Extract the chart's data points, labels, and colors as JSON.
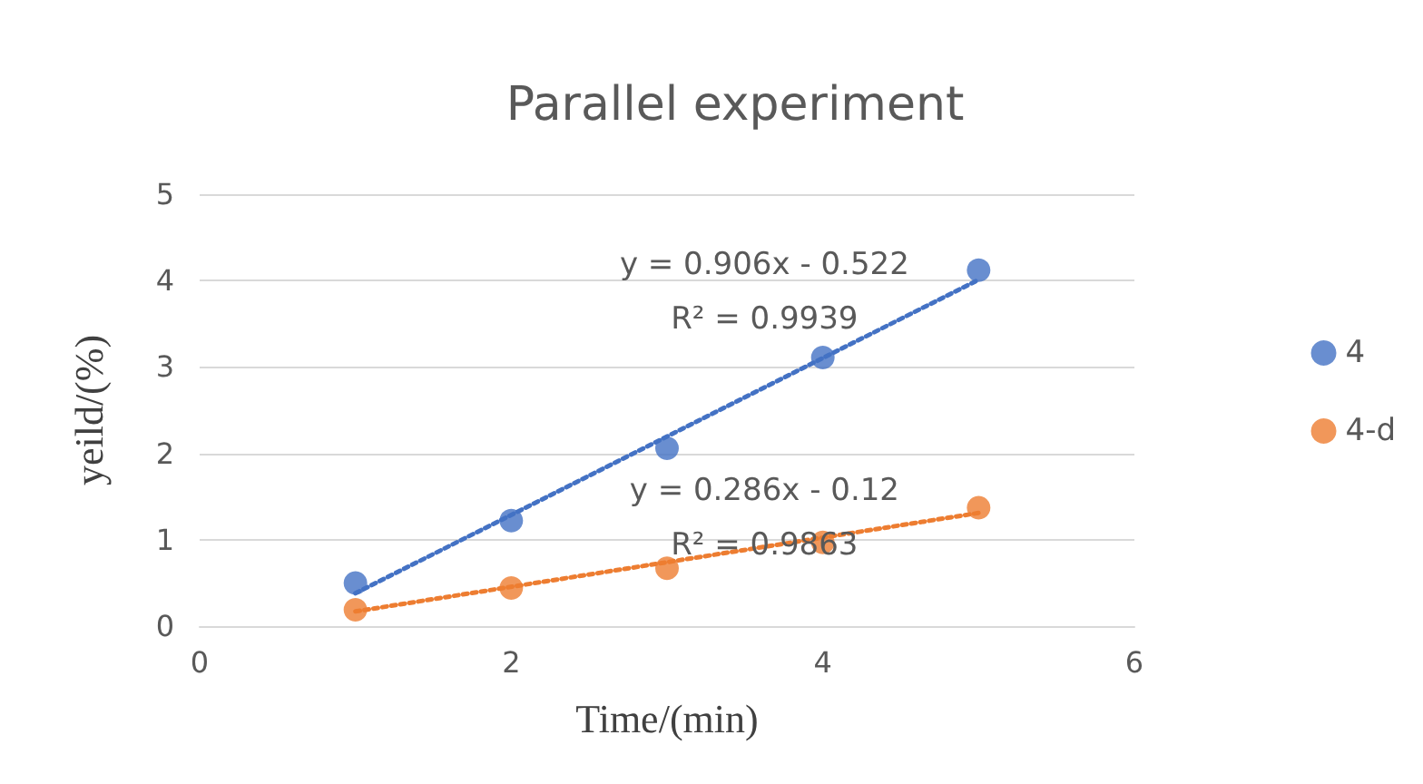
{
  "chart_data": {
    "type": "scatter",
    "title": "Parallel experiment",
    "xlabel": "Time/(min)",
    "ylabel": "yeild/(%)",
    "xlim": [
      0,
      6
    ],
    "xticks": [
      0,
      2,
      4,
      6
    ],
    "ylim": [
      0,
      5
    ],
    "yticks": [
      0,
      1,
      2,
      3,
      4,
      5
    ],
    "grid": "y",
    "legend": "right",
    "marker": "circle",
    "series": [
      {
        "name": "4",
        "color": "#4472c4",
        "x": [
          1,
          2,
          3,
          4,
          5
        ],
        "values": [
          0.5,
          1.22,
          2.06,
          3.11,
          4.12
        ]
      },
      {
        "name": "4-d",
        "color": "#ed7d31",
        "x": [
          1,
          2,
          3,
          4,
          5
        ],
        "values": [
          0.19,
          0.44,
          0.67,
          0.97,
          1.37
        ]
      },
      {
        "type": "line",
        "color": "#4472c4",
        "line_style": "dotted",
        "marker": "none",
        "x": [
          1,
          5
        ],
        "values": [
          0.38,
          4.01
        ]
      },
      {
        "type": "line",
        "color": "#ed7d31",
        "line_style": "dotted",
        "marker": "none",
        "x": [
          1,
          5
        ],
        "values": [
          0.17,
          1.31
        ]
      }
    ],
    "annotations": [
      "y = 0.906x - 0.522",
      "R² = 0.9939",
      "y = 0.286x - 0.12",
      "R² = 0.9863"
    ]
  }
}
